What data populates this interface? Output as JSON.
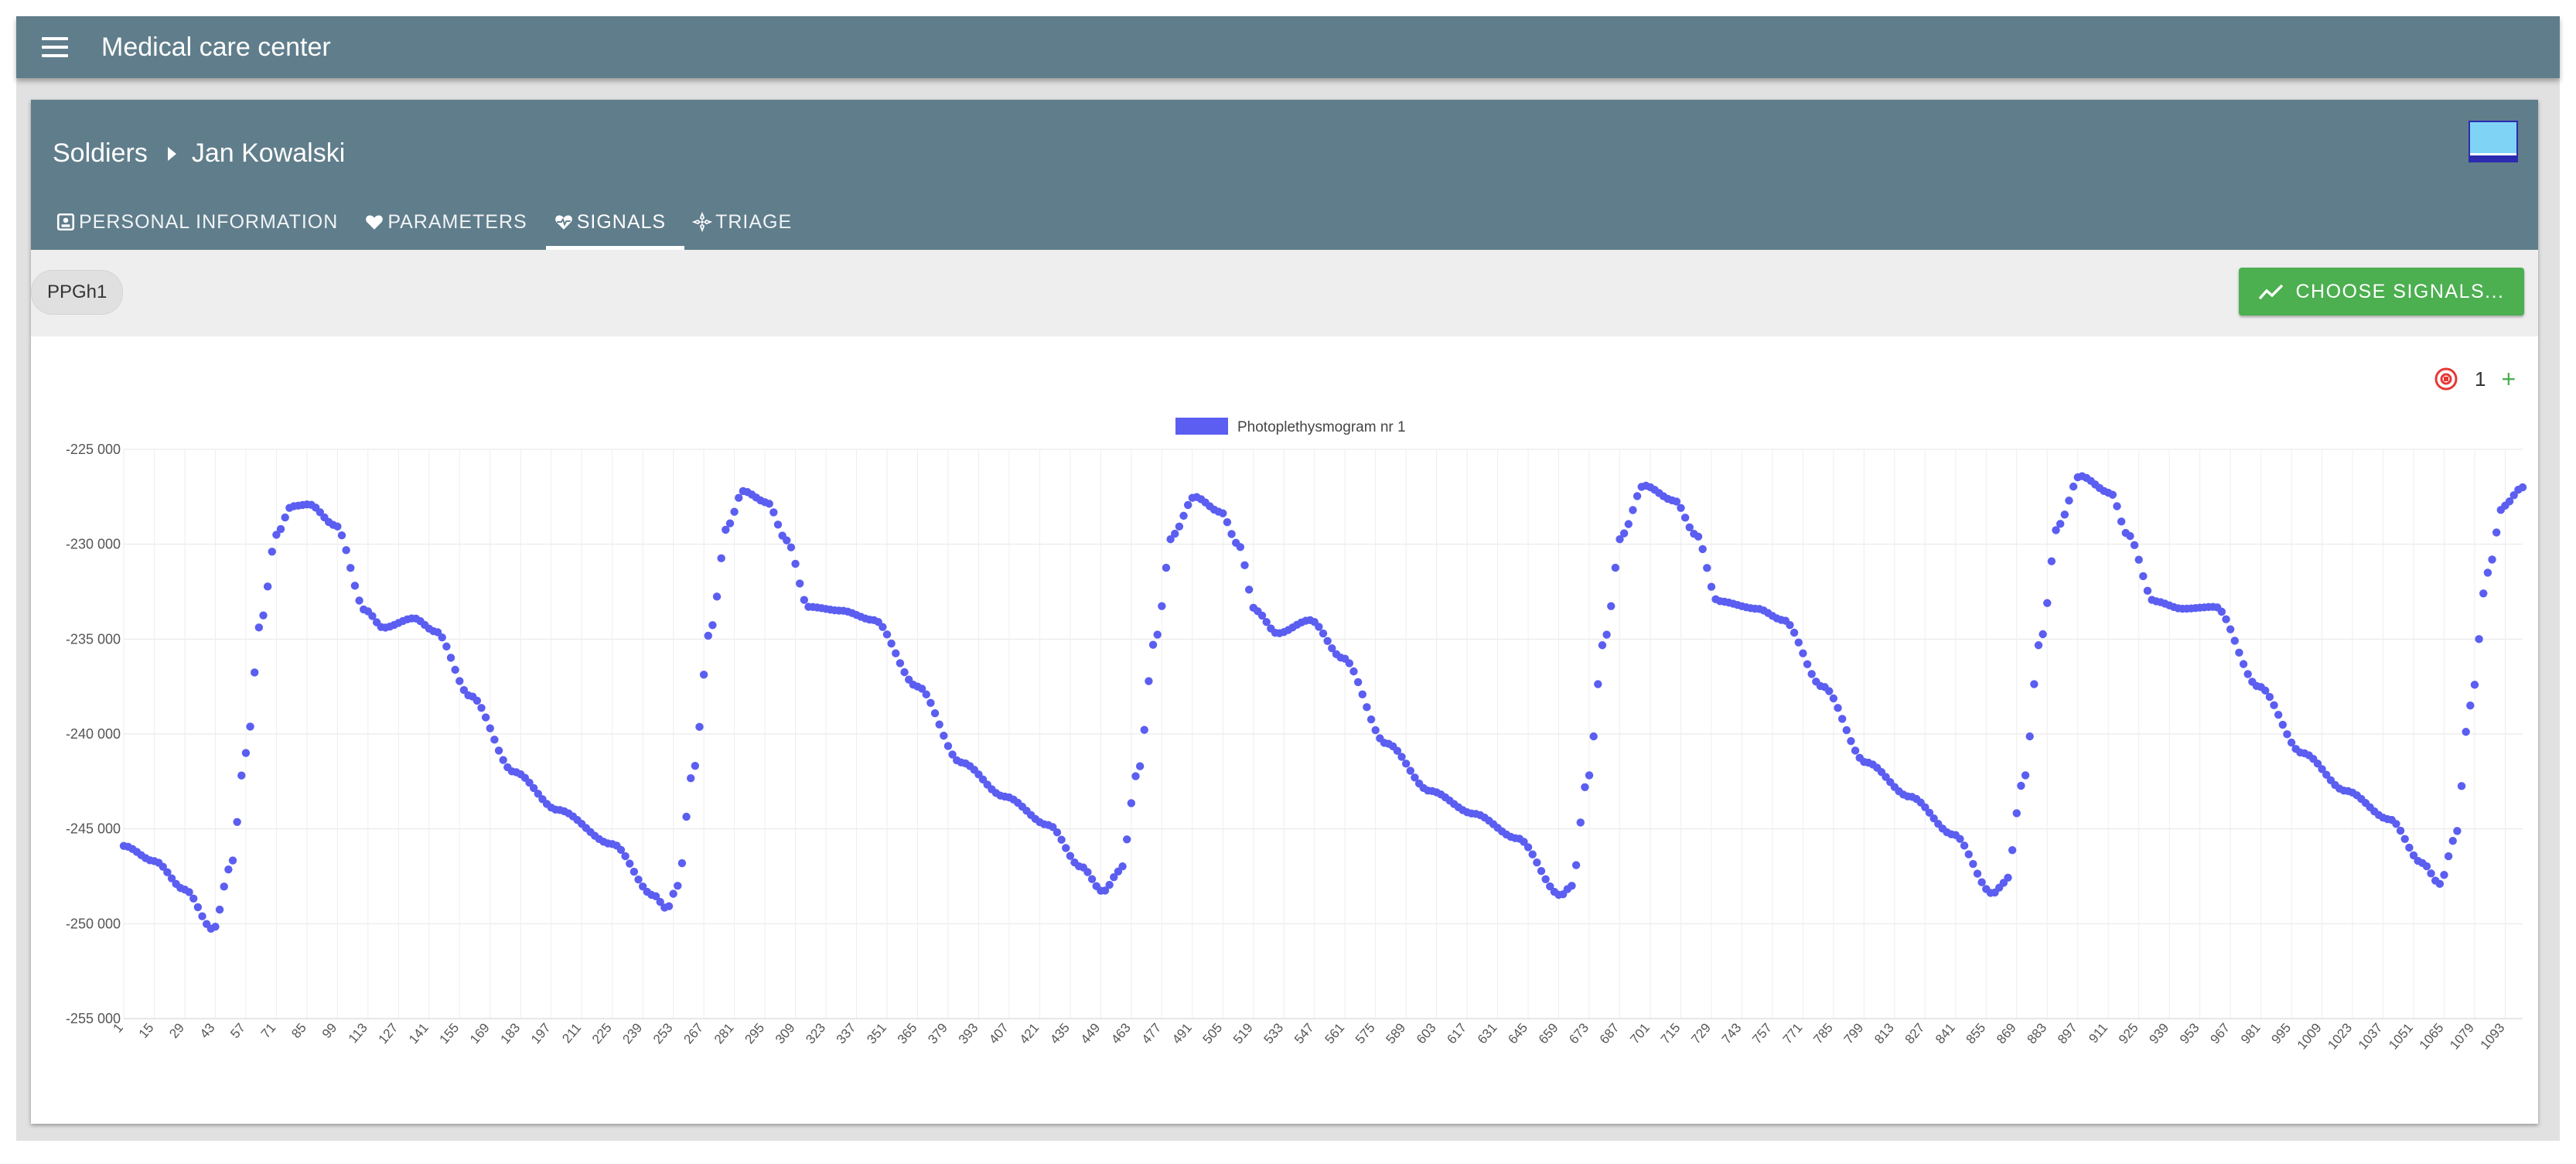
{
  "app": {
    "title": "Medical care center",
    "menu_icon": "menu-icon"
  },
  "breadcrumb": {
    "parent": "Soldiers",
    "current": "Jan Kowalski"
  },
  "tabs": [
    {
      "label": "PERSONAL INFORMATION",
      "icon": "id-card-icon",
      "active": false
    },
    {
      "label": "PARAMETERS",
      "icon": "heart-icon",
      "active": false
    },
    {
      "label": "SIGNALS",
      "icon": "heart-pulse-icon",
      "active": true
    },
    {
      "label": "TRIAGE",
      "icon": "triage-icon",
      "active": false
    }
  ],
  "toolbar": {
    "chip_label": "PPGh1",
    "choose_label": "CHOOSE SIGNALS..."
  },
  "chart_controls": {
    "count": "1",
    "plus": "+"
  },
  "colors": {
    "appbar": "#607d8b",
    "accent_green": "#4caf50",
    "series": "#5b5ef0",
    "remove_red": "#e53935"
  },
  "chart_data": {
    "type": "scatter",
    "series": [
      {
        "name": "Photoplethysmogram nr 1",
        "x_start": 1,
        "x_step": 1,
        "x_end": 1101,
        "keyframes": [
          [
            1,
            -245900
          ],
          [
            15,
            -246700
          ],
          [
            29,
            -248200
          ],
          [
            42,
            -250300
          ],
          [
            50,
            -247000
          ],
          [
            57,
            -241000
          ],
          [
            64,
            -234000
          ],
          [
            71,
            -229500
          ],
          [
            78,
            -228000
          ],
          [
            86,
            -227900
          ],
          [
            98,
            -229000
          ],
          [
            112,
            -233500
          ],
          [
            120,
            -234400
          ],
          [
            134,
            -233900
          ],
          [
            144,
            -234600
          ],
          [
            160,
            -238000
          ],
          [
            180,
            -242000
          ],
          [
            200,
            -244000
          ],
          [
            225,
            -245800
          ],
          [
            244,
            -248500
          ],
          [
            250,
            -249200
          ],
          [
            255,
            -248000
          ],
          [
            262,
            -242000
          ],
          [
            270,
            -234500
          ],
          [
            278,
            -229000
          ],
          [
            285,
            -227200
          ],
          [
            296,
            -227800
          ],
          [
            305,
            -229800
          ],
          [
            315,
            -233300
          ],
          [
            330,
            -233500
          ],
          [
            345,
            -234000
          ],
          [
            365,
            -237500
          ],
          [
            385,
            -241500
          ],
          [
            405,
            -243300
          ],
          [
            425,
            -244800
          ],
          [
            440,
            -247000
          ],
          [
            450,
            -248300
          ],
          [
            458,
            -247200
          ],
          [
            466,
            -242000
          ],
          [
            474,
            -235000
          ],
          [
            482,
            -229500
          ],
          [
            492,
            -227500
          ],
          [
            504,
            -228300
          ],
          [
            512,
            -230000
          ],
          [
            520,
            -233500
          ],
          [
            530,
            -234700
          ],
          [
            545,
            -234000
          ],
          [
            560,
            -236000
          ],
          [
            580,
            -240500
          ],
          [
            600,
            -243000
          ],
          [
            620,
            -244200
          ],
          [
            640,
            -245500
          ],
          [
            660,
            -248500
          ],
          [
            665,
            -248000
          ],
          [
            672,
            -242500
          ],
          [
            680,
            -235000
          ],
          [
            688,
            -229500
          ],
          [
            698,
            -226900
          ],
          [
            712,
            -227700
          ],
          [
            722,
            -229500
          ],
          [
            732,
            -233000
          ],
          [
            750,
            -233400
          ],
          [
            762,
            -234000
          ],
          [
            780,
            -237500
          ],
          [
            800,
            -241500
          ],
          [
            820,
            -243300
          ],
          [
            840,
            -245300
          ],
          [
            858,
            -248400
          ],
          [
            864,
            -247800
          ],
          [
            872,
            -242500
          ],
          [
            880,
            -235000
          ],
          [
            888,
            -229000
          ],
          [
            898,
            -226400
          ],
          [
            912,
            -227300
          ],
          [
            920,
            -229500
          ],
          [
            932,
            -233000
          ],
          [
            945,
            -233400
          ],
          [
            960,
            -233300
          ],
          [
            980,
            -237500
          ],
          [
            1000,
            -241000
          ],
          [
            1020,
            -243000
          ],
          [
            1040,
            -244500
          ],
          [
            1055,
            -246800
          ],
          [
            1063,
            -247900
          ],
          [
            1070,
            -245500
          ],
          [
            1077,
            -238500
          ],
          [
            1085,
            -231500
          ],
          [
            1092,
            -228000
          ],
          [
            1101,
            -227000
          ]
        ]
      }
    ],
    "x_tick_start": 1,
    "x_tick_step": 14,
    "y_ticks": [
      -225000,
      -230000,
      -235000,
      -240000,
      -245000,
      -250000,
      -255000
    ],
    "y_tick_labels": [
      "-225 000",
      "-230 000",
      "-235 000",
      "-240 000",
      "-245 000",
      "-250 000",
      "-255 000"
    ],
    "ylim": [
      -255000,
      -225000
    ],
    "xlim": [
      1,
      1101
    ],
    "grid": true,
    "legend_position": "top-center"
  }
}
